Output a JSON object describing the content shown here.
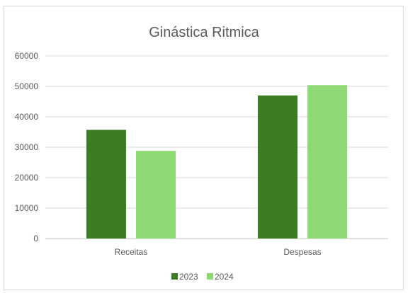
{
  "chart_data": {
    "type": "bar",
    "title": "Ginástica Ritmica",
    "xlabel": "",
    "ylabel": "",
    "categories": [
      "Receitas",
      "Despesas"
    ],
    "series": [
      {
        "name": "2023",
        "values": [
          35700,
          47000
        ],
        "color": "#3b7d23"
      },
      {
        "name": "2024",
        "values": [
          28800,
          50400
        ],
        "color": "#8ed973"
      }
    ],
    "ylim": [
      0,
      60000
    ],
    "yticks": [
      "0",
      "10000",
      "20000",
      "30000",
      "40000",
      "50000",
      "60000"
    ],
    "grid": true,
    "legend_position": "bottom"
  }
}
